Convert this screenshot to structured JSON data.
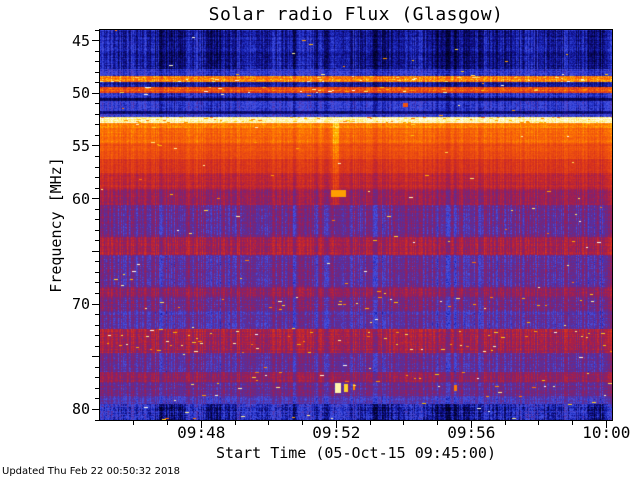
{
  "figure": {
    "footer_updated": "Updated Thu Feb 22 00:50:32 2018"
  },
  "chart_data": {
    "type": "heatmap",
    "title": "Solar radio Flux (Glasgow)",
    "xlabel": "Start Time (05-Oct-15 09:45:00)",
    "ylabel": "Frequency [MHz]",
    "x_start_label": "09:45:00",
    "x_total_seconds": 910,
    "x_ticks": [
      {
        "label": "09:48",
        "sec": 180
      },
      {
        "label": "09:52",
        "sec": 420
      },
      {
        "label": "09:56",
        "sec": 660
      },
      {
        "label": "10:00",
        "sec": 900
      }
    ],
    "x_minor_step_sec": 60,
    "y_min": 44.0,
    "y_max": 81.0,
    "y_ticks": [
      {
        "label": "45",
        "f": 45
      },
      {
        "label": "50",
        "f": 50
      },
      {
        "label": "55",
        "f": 55
      },
      {
        "label": "60",
        "f": 60
      },
      {
        "label": "70",
        "f": 70
      },
      {
        "label": "80",
        "f": 80
      }
    ],
    "y_major_unlabeled": [
      65,
      75
    ],
    "y_minor_step": 1,
    "noise_seed": 42,
    "colormap": [
      [
        0.0,
        0,
        0,
        30
      ],
      [
        0.06,
        5,
        5,
        75
      ],
      [
        0.12,
        15,
        15,
        135
      ],
      [
        0.18,
        30,
        45,
        195
      ],
      [
        0.24,
        70,
        85,
        230
      ],
      [
        0.3,
        80,
        50,
        170
      ],
      [
        0.38,
        110,
        40,
        130
      ],
      [
        0.46,
        150,
        30,
        90
      ],
      [
        0.54,
        185,
        35,
        55
      ],
      [
        0.62,
        215,
        50,
        28
      ],
      [
        0.72,
        240,
        82,
        14
      ],
      [
        0.8,
        255,
        122,
        2
      ],
      [
        0.88,
        255,
        196,
        0
      ],
      [
        0.94,
        255,
        240,
        130
      ],
      [
        1.0,
        255,
        255,
        255
      ]
    ],
    "bands": [
      {
        "f0": 44.0,
        "f1": 47.7,
        "base": 0.13,
        "noise": 0.07,
        "stripe": 0.07,
        "slow": 0.05,
        "speckle": 0.0005,
        "label": "blue noisy background"
      },
      {
        "f0": 47.7,
        "f1": 48.35,
        "base": 0.2,
        "noise": 0.07,
        "stripe": 0.05,
        "slow": 0.03,
        "speckle": 0.001,
        "label": "brighter blue haze"
      },
      {
        "f0": 48.35,
        "f1": 48.95,
        "base": 0.8,
        "noise": 0.13,
        "stripe": 0.05,
        "slow": 0.0,
        "speckle": 0.02,
        "label": "strong RFI line ~48.6 MHz"
      },
      {
        "f0": 48.95,
        "f1": 49.45,
        "base": 0.14,
        "noise": 0.06,
        "stripe": 0.05,
        "slow": 0.02,
        "speckle": 0.001,
        "label": "dark gap"
      },
      {
        "f0": 49.45,
        "f1": 49.95,
        "base": 0.7,
        "noise": 0.14,
        "stripe": 0.05,
        "slow": 0.0,
        "speckle": 0.012,
        "label": "RFI line ~49.7 MHz"
      },
      {
        "f0": 49.95,
        "f1": 50.45,
        "base": 0.19,
        "noise": 0.07,
        "stripe": 0.06,
        "slow": 0.03,
        "speckle": 0.0008
      },
      {
        "f0": 50.45,
        "f1": 50.75,
        "base": 0.08,
        "noise": 0.04,
        "stripe": 0.03,
        "slow": 0.0,
        "speckle": 0,
        "label": "dark lane"
      },
      {
        "f0": 50.75,
        "f1": 51.65,
        "base": 0.21,
        "noise": 0.07,
        "stripe": 0.06,
        "slow": 0.03,
        "speckle": 0.0008
      },
      {
        "f0": 51.65,
        "f1": 51.95,
        "base": 0.1,
        "noise": 0.05,
        "stripe": 0.03,
        "slow": 0.0,
        "speckle": 0,
        "label": "dark lane"
      },
      {
        "f0": 51.95,
        "f1": 52.3,
        "base": 0.23,
        "noise": 0.07,
        "stripe": 0.05,
        "slow": 0.02,
        "speckle": 0.0008
      },
      {
        "f0": 52.3,
        "f1": 52.8,
        "base": 0.96,
        "noise": 0.05,
        "stripe": 0.02,
        "slow": 0.0,
        "speckle": 0.03,
        "label": "saturated bright line ~52.5 MHz"
      },
      {
        "f0": 52.8,
        "f1": 53.3,
        "base": 0.82,
        "noise": 0.06,
        "stripe": 0.03,
        "slow": 0.0,
        "speckle": 0.004,
        "label": "orange edge"
      },
      {
        "f0": 53.3,
        "f1": 54.7,
        "base": 0.76,
        "noise": 0.05,
        "stripe": 0.04,
        "slow": 0.02,
        "speckle": 0.001,
        "label": "bright continuum band"
      },
      {
        "f0": 54.7,
        "f1": 56.2,
        "base": 0.7,
        "noise": 0.05,
        "stripe": 0.04,
        "slow": 0.02,
        "speckle": 0.0005
      },
      {
        "f0": 56.2,
        "f1": 57.6,
        "base": 0.63,
        "noise": 0.05,
        "stripe": 0.05,
        "slow": 0.02,
        "speckle": 0.0003
      },
      {
        "f0": 57.6,
        "f1": 59.1,
        "base": 0.55,
        "noise": 0.06,
        "stripe": 0.06,
        "slow": 0.02,
        "speckle": 0.0003
      },
      {
        "f0": 59.1,
        "f1": 60.6,
        "base": 0.47,
        "noise": 0.07,
        "stripe": 0.08,
        "slow": 0.02,
        "speckle": 0.0005
      },
      {
        "f0": 60.6,
        "f1": 63.6,
        "base": 0.36,
        "noise": 0.08,
        "stripe": 0.1,
        "slow": 0.03,
        "speckle": 0.0008,
        "label": "purple striped region"
      },
      {
        "f0": 63.6,
        "f1": 65.3,
        "base": 0.5,
        "noise": 0.08,
        "stripe": 0.09,
        "slow": 0.02,
        "speckle": 0.001,
        "label": "red band ~64 MHz"
      },
      {
        "f0": 65.3,
        "f1": 68.4,
        "base": 0.34,
        "noise": 0.08,
        "stripe": 0.1,
        "slow": 0.03,
        "speckle": 0.0008
      },
      {
        "f0": 68.4,
        "f1": 69.3,
        "base": 0.44,
        "noise": 0.08,
        "stripe": 0.09,
        "slow": 0.02,
        "speckle": 0.001
      },
      {
        "f0": 69.3,
        "f1": 70.7,
        "base": 0.37,
        "noise": 0.09,
        "stripe": 0.1,
        "slow": 0.03,
        "speckle": 0.004,
        "label": "speckled ~70 MHz"
      },
      {
        "f0": 70.7,
        "f1": 72.4,
        "base": 0.32,
        "noise": 0.08,
        "stripe": 0.09,
        "slow": 0.03,
        "speckle": 0.001
      },
      {
        "f0": 72.4,
        "f1": 73.3,
        "base": 0.5,
        "noise": 0.09,
        "stripe": 0.09,
        "slow": 0.02,
        "speckle": 0.006,
        "label": "speckled red row"
      },
      {
        "f0": 73.3,
        "f1": 74.6,
        "base": 0.48,
        "noise": 0.09,
        "stripe": 0.09,
        "slow": 0.02,
        "speckle": 0.005
      },
      {
        "f0": 74.6,
        "f1": 76.4,
        "base": 0.33,
        "noise": 0.08,
        "stripe": 0.09,
        "slow": 0.03,
        "speckle": 0.001
      },
      {
        "f0": 76.4,
        "f1": 77.4,
        "base": 0.45,
        "noise": 0.08,
        "stripe": 0.08,
        "slow": 0.02,
        "speckle": 0.002
      },
      {
        "f0": 77.4,
        "f1": 78.7,
        "base": 0.37,
        "noise": 0.08,
        "stripe": 0.08,
        "slow": 0.02,
        "speckle": 0.002
      },
      {
        "f0": 78.7,
        "f1": 79.5,
        "base": 0.28,
        "noise": 0.07,
        "stripe": 0.07,
        "slow": 0.03,
        "speckle": 0.001
      },
      {
        "f0": 79.5,
        "f1": 81.0,
        "base": 0.17,
        "noise": 0.1,
        "stripe": 0.08,
        "slow": 0.08,
        "speckle": 0.002,
        "label": "blue noisy bottom band"
      }
    ],
    "events": [
      {
        "kind": "add",
        "t0": 413,
        "t1": 424,
        "f0": 52.8,
        "f1": 60.6,
        "add": 0.09,
        "label": "faint vertical streak at 09:52"
      },
      {
        "kind": "max",
        "t0": 410,
        "t1": 436,
        "f0": 59.2,
        "f1": 59.85,
        "v": 0.84,
        "label": "bright dash at 59.5 MHz"
      },
      {
        "kind": "max",
        "t0": 417,
        "t1": 428,
        "f0": 77.5,
        "f1": 78.4,
        "v": 0.96,
        "label": "bright blobs at 78 MHz near 09:52"
      },
      {
        "kind": "max",
        "t0": 432,
        "t1": 440,
        "f0": 77.55,
        "f1": 78.35,
        "v": 0.9
      },
      {
        "kind": "max",
        "t0": 448,
        "t1": 453,
        "f0": 77.6,
        "f1": 78.2,
        "v": 0.82
      },
      {
        "kind": "max",
        "t0": 538,
        "t1": 546,
        "f0": 50.9,
        "f1": 51.35,
        "v": 0.72,
        "label": "red fleck near 51 MHz"
      },
      {
        "kind": "max",
        "t0": 628,
        "t1": 634,
        "f0": 77.7,
        "f1": 78.25,
        "v": 0.8
      }
    ]
  }
}
